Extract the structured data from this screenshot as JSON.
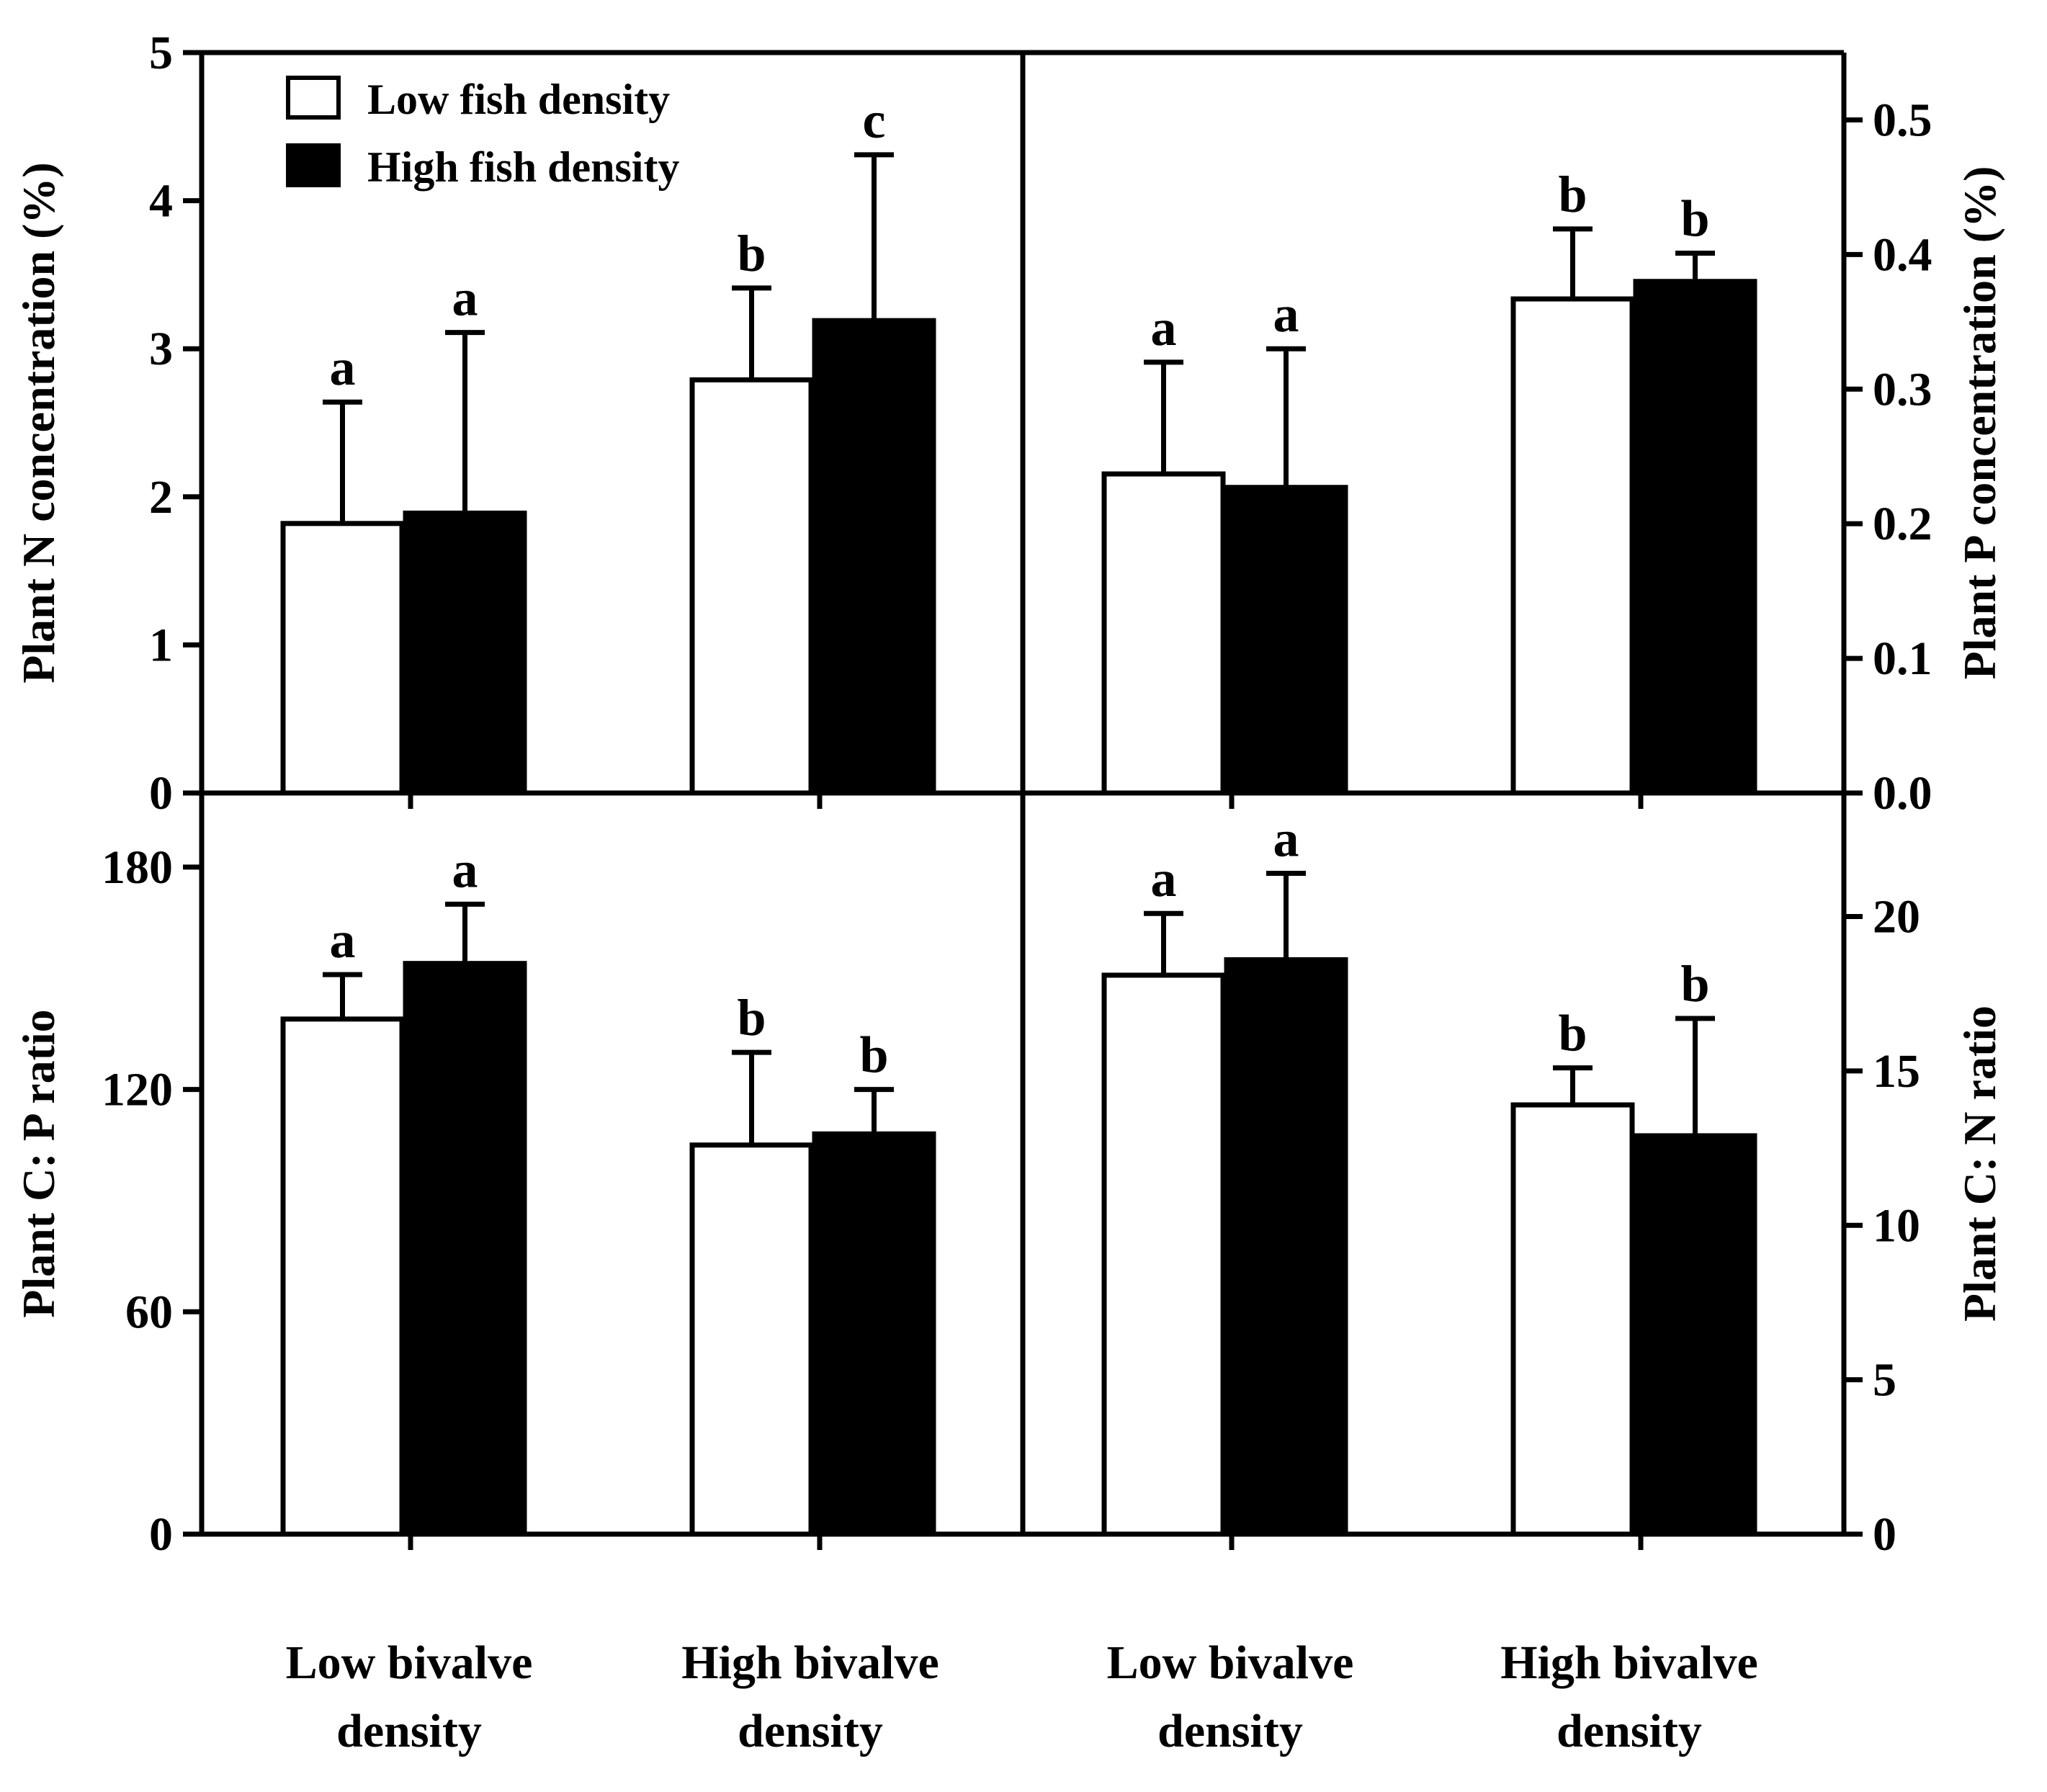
{
  "legend": [
    {
      "label": "Low fish density",
      "color": "#ffffff"
    },
    {
      "label": "High fish density",
      "color": "#000000"
    }
  ],
  "categories": [
    [
      "Low bivalve",
      "density"
    ],
    [
      "High bivalve",
      "density"
    ]
  ],
  "chart_data": [
    {
      "id": "n",
      "type": "bar",
      "position": "top-left",
      "ylabel": "Plant N concentration (%)",
      "ylim": [
        0,
        5
      ],
      "yticks": [
        0,
        1,
        2,
        3,
        4,
        5
      ],
      "tick_decimals": 0,
      "categories": [
        "Low bivalve density",
        "High bivalve density"
      ],
      "series": [
        {
          "name": "Low fish density",
          "values": [
            1.82,
            2.79
          ],
          "errors": [
            0.82,
            0.62
          ],
          "letters": [
            "a",
            "b"
          ]
        },
        {
          "name": "High fish density",
          "values": [
            1.89,
            3.19
          ],
          "errors": [
            1.22,
            1.12
          ],
          "letters": [
            "a",
            "c"
          ]
        }
      ]
    },
    {
      "id": "p",
      "type": "bar",
      "position": "top-right",
      "ylabel": "Plant P concentration (%)",
      "ylim": [
        0,
        0.55
      ],
      "yticks": [
        0.0,
        0.1,
        0.2,
        0.3,
        0.4,
        0.5
      ],
      "tick_decimals": 1,
      "categories": [
        "Low bivalve density",
        "High bivalve density"
      ],
      "series": [
        {
          "name": "Low fish density",
          "values": [
            0.237,
            0.367
          ],
          "errors": [
            0.083,
            0.052
          ],
          "letters": [
            "a",
            "b"
          ]
        },
        {
          "name": "High fish density",
          "values": [
            0.227,
            0.38
          ],
          "errors": [
            0.103,
            0.021
          ],
          "letters": [
            "a",
            "b"
          ]
        }
      ]
    },
    {
      "id": "cp",
      "type": "bar",
      "position": "bottom-left",
      "ylabel": "Plant C: P ratio",
      "ylim": [
        0,
        200
      ],
      "yticks": [
        0,
        60,
        120,
        180
      ],
      "tick_decimals": 0,
      "categories": [
        "Low bivalve density",
        "High bivalve density"
      ],
      "series": [
        {
          "name": "Low fish density",
          "values": [
            139,
            105
          ],
          "errors": [
            12,
            25
          ],
          "letters": [
            "a",
            "b"
          ]
        },
        {
          "name": "High fish density",
          "values": [
            154,
            108
          ],
          "errors": [
            16,
            12
          ],
          "letters": [
            "a",
            "b"
          ]
        }
      ]
    },
    {
      "id": "cn",
      "type": "bar",
      "position": "bottom-right",
      "ylabel": "Plant C: N ratio",
      "ylim": [
        0,
        24
      ],
      "yticks": [
        0,
        5,
        10,
        15,
        20
      ],
      "tick_decimals": 0,
      "categories": [
        "Low bivalve density",
        "High bivalve density"
      ],
      "series": [
        {
          "name": "Low fish density",
          "values": [
            18.1,
            13.9
          ],
          "errors": [
            2.0,
            1.2
          ],
          "letters": [
            "a",
            "b"
          ]
        },
        {
          "name": "High fish density",
          "values": [
            18.6,
            12.9
          ],
          "errors": [
            2.8,
            3.8
          ],
          "letters": [
            "a",
            "b"
          ]
        }
      ]
    }
  ]
}
